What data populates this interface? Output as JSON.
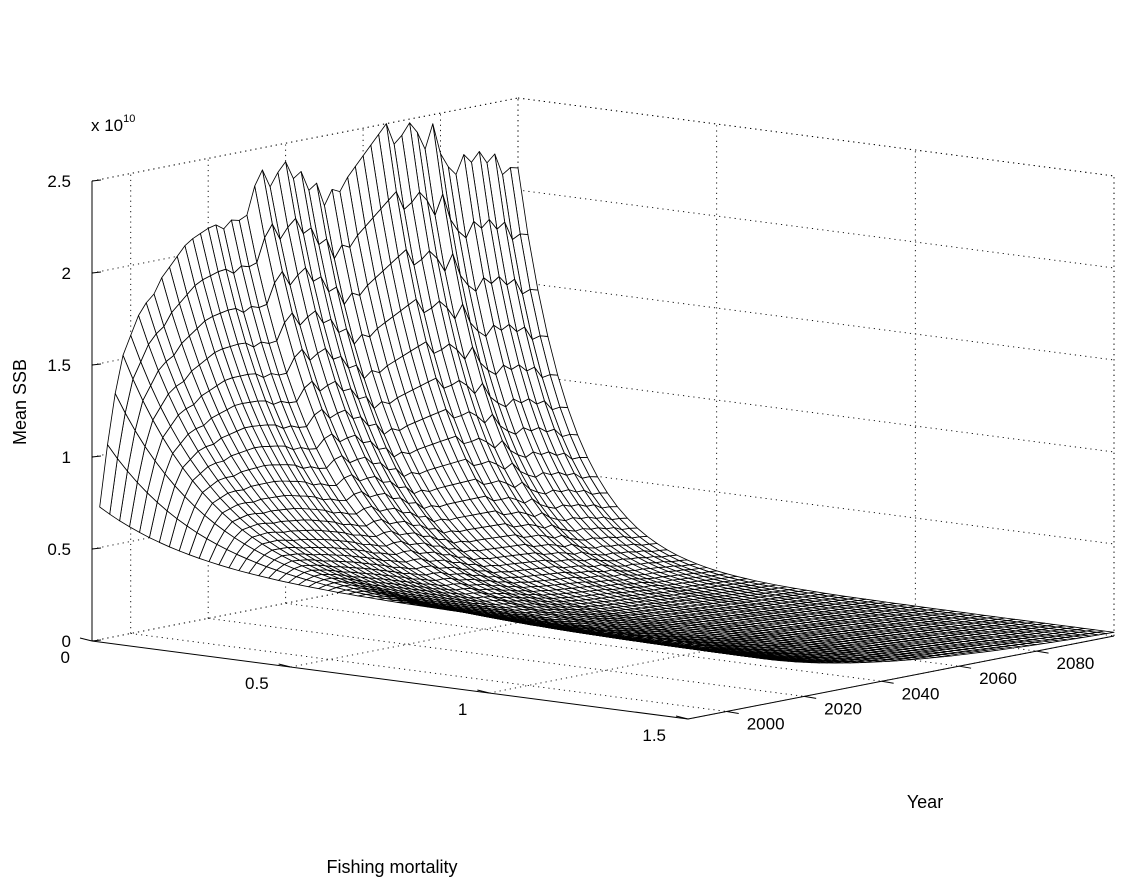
{
  "chart_data": {
    "type": "surface",
    "x_axis": {
      "label": "Fishing mortality",
      "range": [
        0,
        1.5
      ],
      "ticks": [
        0,
        0.5,
        1,
        1.5
      ],
      "tick_labels": [
        "0",
        "0.5",
        "1",
        "1.5"
      ]
    },
    "y_axis": {
      "label": "Year",
      "range": [
        1990,
        2100
      ],
      "ticks": [
        2000,
        2020,
        2040,
        2060,
        2080
      ],
      "tick_labels": [
        "2000",
        "2020",
        "2040",
        "2060",
        "2080"
      ]
    },
    "z_axis": {
      "label": "Mean SSB",
      "range": [
        0,
        2.5
      ],
      "ticks": [
        0,
        0.5,
        1,
        1.5,
        2,
        2.5
      ],
      "tick_labels": [
        "0",
        "0.5",
        "1",
        "1.5",
        "2",
        "2.5"
      ],
      "multiplier_base": "x 10",
      "multiplier_exponent": "10"
    },
    "grid": true,
    "mesh_color": "#000000",
    "face_color": "#ffffff",
    "year_grid": [
      1992,
      1994,
      1996,
      1998,
      2000,
      2002,
      2004,
      2006,
      2008,
      2010,
      2012,
      2014,
      2016,
      2018,
      2020,
      2022,
      2024,
      2026,
      2028,
      2030,
      2032,
      2034,
      2036,
      2038,
      2040,
      2042,
      2044,
      2046,
      2048,
      2050,
      2052,
      2054,
      2056,
      2058,
      2060,
      2062,
      2064,
      2066,
      2068,
      2070,
      2072,
      2074,
      2076,
      2078,
      2080,
      2082,
      2084,
      2086,
      2088,
      2090,
      2092,
      2094,
      2096,
      2098,
      2100
    ],
    "mortality_grid": [
      0,
      0.1,
      0.2,
      0.3,
      0.4,
      0.5,
      0.6,
      0.7,
      0.8,
      0.9,
      1.0,
      1.1,
      1.2,
      1.3,
      1.4,
      1.5
    ],
    "ssb_at_mortality_zero": [
      0.72,
      1.05,
      1.32,
      1.52,
      1.62,
      1.72,
      1.78,
      1.82,
      1.9,
      1.95,
      2.0,
      2.05,
      2.08,
      2.1,
      2.12,
      2.13,
      2.1,
      2.14,
      2.13,
      2.15,
      2.3,
      2.38,
      2.28,
      2.35,
      2.4,
      2.3,
      2.33,
      2.22,
      2.25,
      2.12,
      2.2,
      2.18,
      2.25,
      2.3,
      2.35,
      2.4,
      2.45,
      2.5,
      2.38,
      2.42,
      2.48,
      2.42,
      2.32,
      2.45,
      2.28,
      2.2,
      2.15,
      2.25,
      2.2,
      2.25,
      2.18,
      2.22,
      2.1,
      2.13,
      2.12
    ],
    "ssb_at_mortality_max_start": 0.4,
    "ssb_at_mortality_max_end": 0.02
  }
}
